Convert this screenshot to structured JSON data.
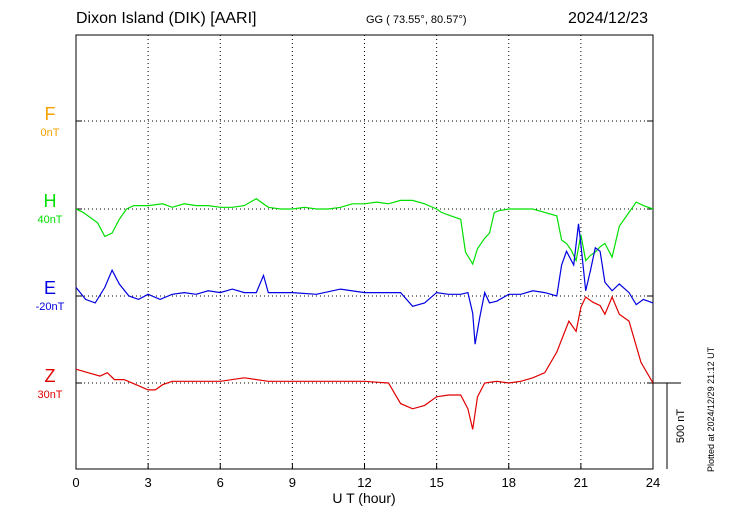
{
  "header": {
    "station": "Dixon Island (DIK)  [AARI]",
    "coords": "GG ( 73.55°,  80.57°)",
    "date": "2024/12/23"
  },
  "components": [
    {
      "name": "F",
      "baseline": "0nT",
      "color": "#f5a000"
    },
    {
      "name": "H",
      "baseline": "40nT",
      "color": "#00e000"
    },
    {
      "name": "E",
      "baseline": "-20nT",
      "color": "#0000e0"
    },
    {
      "name": "Z",
      "baseline": "30nT",
      "color": "#e00000"
    }
  ],
  "scale_label": "500 nT",
  "plotted_note": "Plotted at 2024/12/29 21:12 UT",
  "chart_data": {
    "type": "line",
    "title": "Dixon Island (DIK)  [AARI]",
    "xlabel": "U T (hour)",
    "ylabel": "",
    "xlim": [
      0,
      24
    ],
    "xticks": [
      "0",
      "3",
      "6",
      "9",
      "12",
      "15",
      "18",
      "21",
      "24"
    ],
    "grid": true,
    "units": "nT (deviation from baseline)",
    "series": [
      {
        "name": "F",
        "color": "#f5a000",
        "x": [],
        "y": []
      },
      {
        "name": "H",
        "color": "#00e000",
        "x": [
          0,
          0.3,
          0.6,
          0.9,
          1.2,
          1.5,
          1.8,
          2.1,
          2.4,
          3,
          3.6,
          4,
          4.5,
          5,
          5.5,
          6,
          6.5,
          7,
          7.5,
          8,
          8.5,
          9,
          9.5,
          10,
          10.5,
          11,
          11.5,
          12,
          12.5,
          13,
          13.5,
          14,
          14.5,
          15,
          15.2,
          15.6,
          16,
          16.2,
          16.5,
          16.7,
          17,
          17.2,
          17.4,
          17.6,
          18,
          18.5,
          19,
          19.5,
          20,
          20.2,
          20.4,
          20.6,
          20.8,
          21,
          21.2,
          21.4,
          21.6,
          21.8,
          22,
          22.3,
          22.6,
          23,
          23.3,
          23.6,
          24
        ],
        "y": [
          0,
          -20,
          -50,
          -80,
          -160,
          -140,
          -60,
          0,
          20,
          20,
          30,
          10,
          30,
          20,
          20,
          10,
          10,
          20,
          60,
          10,
          0,
          0,
          10,
          0,
          0,
          10,
          30,
          30,
          40,
          30,
          50,
          50,
          30,
          0,
          -20,
          -40,
          -60,
          -250,
          -320,
          -230,
          -170,
          -140,
          -20,
          -10,
          0,
          0,
          0,
          -20,
          -40,
          -180,
          -200,
          -240,
          -300,
          -150,
          -300,
          -270,
          -250,
          -220,
          -200,
          -280,
          -100,
          -20,
          40,
          20,
          0
        ]
      },
      {
        "name": "E",
        "color": "#0000e0",
        "x": [
          0,
          0.4,
          0.8,
          1.2,
          1.5,
          1.8,
          2.2,
          2.6,
          3,
          3.5,
          4,
          4.5,
          5,
          5.5,
          6,
          6.5,
          7,
          7.5,
          7.8,
          8,
          9,
          10,
          11,
          12,
          12.5,
          13,
          13.5,
          14,
          14.5,
          15,
          15.5,
          16,
          16.3,
          16.5,
          16.6,
          16.8,
          17,
          17.2,
          17.5,
          18,
          18.5,
          19,
          19.5,
          20,
          20.2,
          20.4,
          20.7,
          20.9,
          21,
          21.2,
          21.4,
          21.6,
          21.8,
          22,
          22.3,
          22.6,
          23,
          23.3,
          23.6,
          24
        ],
        "y": [
          50,
          -20,
          -40,
          50,
          150,
          70,
          0,
          -20,
          10,
          -20,
          10,
          20,
          10,
          30,
          20,
          40,
          20,
          20,
          120,
          20,
          20,
          10,
          40,
          20,
          20,
          20,
          20,
          -60,
          -40,
          20,
          10,
          10,
          20,
          -100,
          -280,
          -120,
          20,
          -40,
          -30,
          10,
          10,
          30,
          20,
          0,
          180,
          260,
          180,
          420,
          300,
          30,
          150,
          280,
          260,
          80,
          30,
          70,
          20,
          -50,
          -20,
          -40
        ]
      },
      {
        "name": "Z",
        "color": "#e00000",
        "x": [
          0,
          0.5,
          1,
          1.3,
          1.6,
          2,
          2.5,
          3,
          3.3,
          3.6,
          4,
          5,
          6,
          7,
          8,
          9,
          10,
          11,
          12,
          13,
          13.5,
          14,
          14.5,
          15,
          15.5,
          16,
          16.3,
          16.5,
          16.7,
          17,
          17.5,
          18,
          18.5,
          19,
          19.5,
          20,
          20.5,
          20.8,
          21,
          21.2,
          21.5,
          21.8,
          22,
          22.3,
          22.6,
          23,
          23.5,
          24
        ],
        "y": [
          80,
          60,
          40,
          60,
          20,
          20,
          -10,
          -40,
          -40,
          -10,
          10,
          10,
          10,
          30,
          10,
          10,
          10,
          10,
          10,
          0,
          -120,
          -150,
          -130,
          -80,
          -70,
          -70,
          -150,
          -270,
          -80,
          0,
          10,
          0,
          10,
          30,
          60,
          180,
          360,
          300,
          440,
          500,
          470,
          450,
          400,
          500,
          400,
          360,
          120,
          0
        ]
      }
    ]
  }
}
